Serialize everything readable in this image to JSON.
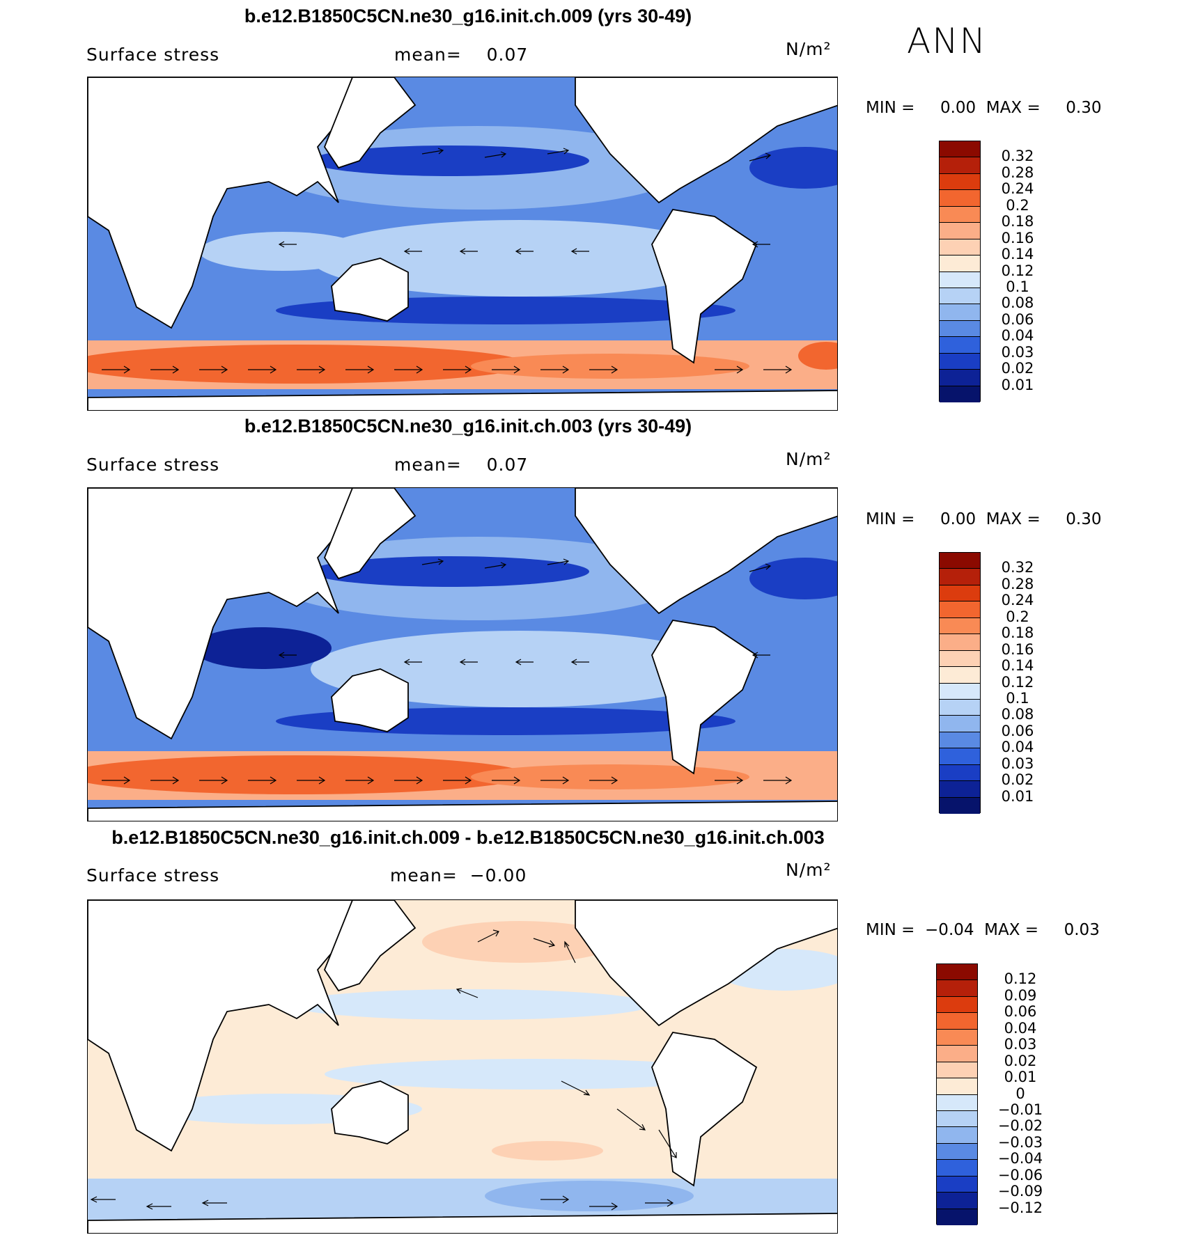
{
  "season": "ANN",
  "panels": [
    {
      "title": "b.e12.B1850C5CN.ne30_g16.init.ch.009 (yrs 30-49)",
      "variable": "Surface stress",
      "mean_text": "mean=    0.07",
      "units": "N/m²",
      "minmax_text": "MIN =     0.00  MAX =     0.30",
      "colorbar": {
        "labels": [
          "0.32",
          "0.28",
          "0.24",
          "0.2",
          "0.18",
          "0.16",
          "0.14",
          "0.12",
          "0.1",
          "0.08",
          "0.06",
          "0.04",
          "0.03",
          "0.02",
          "0.01"
        ],
        "colors": [
          "#8b0a00",
          "#b5200a",
          "#dc3c0e",
          "#f2662f",
          "#f98a55",
          "#fbae88",
          "#fdd1b4",
          "#fdebd6",
          "#d6e8fa",
          "#b6d2f5",
          "#90b6ee",
          "#5a8ae3",
          "#2f61dc",
          "#1a3ec4",
          "#0d2296",
          "#06136b"
        ]
      }
    },
    {
      "title": "b.e12.B1850C5CN.ne30_g16.init.ch.003 (yrs 30-49)",
      "variable": "Surface stress",
      "mean_text": "mean=    0.07",
      "units": "N/m²",
      "minmax_text": "MIN =     0.00  MAX =     0.30",
      "colorbar": {
        "labels": [
          "0.32",
          "0.28",
          "0.24",
          "0.2",
          "0.18",
          "0.16",
          "0.14",
          "0.12",
          "0.1",
          "0.08",
          "0.06",
          "0.04",
          "0.03",
          "0.02",
          "0.01"
        ],
        "colors": [
          "#8b0a00",
          "#b5200a",
          "#dc3c0e",
          "#f2662f",
          "#f98a55",
          "#fbae88",
          "#fdd1b4",
          "#fdebd6",
          "#d6e8fa",
          "#b6d2f5",
          "#90b6ee",
          "#5a8ae3",
          "#2f61dc",
          "#1a3ec4",
          "#0d2296",
          "#06136b"
        ]
      }
    },
    {
      "title": "b.e12.B1850C5CN.ne30_g16.init.ch.009 - b.e12.B1850C5CN.ne30_g16.init.ch.003",
      "variable": "Surface stress",
      "mean_text": "mean=  −0.00",
      "units": "N/m²",
      "minmax_text": "MIN =  −0.04  MAX =     0.03",
      "colorbar": {
        "labels": [
          "0.12",
          "0.09",
          "0.06",
          "0.04",
          "0.03",
          "0.02",
          "0.01",
          "0",
          "−0.01",
          "−0.02",
          "−0.03",
          "−0.04",
          "−0.06",
          "−0.09",
          "−0.12"
        ],
        "colors": [
          "#8b0a00",
          "#b5200a",
          "#dc3c0e",
          "#f2662f",
          "#f98a55",
          "#fbae88",
          "#fdd1b4",
          "#fdebd6",
          "#d6e8fa",
          "#b6d2f5",
          "#90b6ee",
          "#5a8ae3",
          "#2f61dc",
          "#1a3ec4",
          "#0d2296",
          "#06136b"
        ]
      }
    }
  ]
}
